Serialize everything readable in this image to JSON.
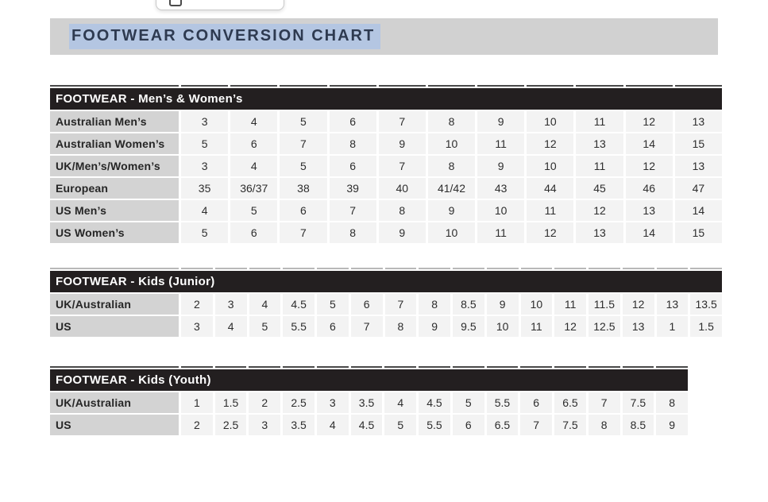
{
  "page": {
    "title": "FOOTWEAR CONVERSION CHART"
  },
  "popup": {
    "icon": "copy-icon"
  },
  "colors": {
    "banner_bg": "#d1d1d1",
    "selection_highlight": "#b4c6e2",
    "title_text": "#2e3a50",
    "table_header_bg": "#231f20",
    "row_label_bg": "#d3d3d3",
    "data_cell_bg": "#f3f3f3"
  },
  "tables": [
    {
      "header": "FOOTWEAR - Men’s & Women’s",
      "rows": [
        {
          "label": "Australian Men’s",
          "cells": [
            "3",
            "4",
            "5",
            "6",
            "7",
            "8",
            "9",
            "10",
            "11",
            "12",
            "13"
          ]
        },
        {
          "label": "Australian Women’s",
          "cells": [
            "5",
            "6",
            "7",
            "8",
            "9",
            "10",
            "11",
            "12",
            "13",
            "14",
            "15"
          ]
        },
        {
          "label": "UK/Men’s/Women’s",
          "cells": [
            "3",
            "4",
            "5",
            "6",
            "7",
            "8",
            "9",
            "10",
            "11",
            "12",
            "13"
          ]
        },
        {
          "label": "European",
          "cells": [
            "35",
            "36/37",
            "38",
            "39",
            "40",
            "41/42",
            "43",
            "44",
            "45",
            "46",
            "47"
          ]
        },
        {
          "label": "US Men’s",
          "cells": [
            "4",
            "5",
            "6",
            "7",
            "8",
            "9",
            "10",
            "11",
            "12",
            "13",
            "14"
          ]
        },
        {
          "label": "US Women’s",
          "cells": [
            "5",
            "6",
            "7",
            "8",
            "9",
            "10",
            "11",
            "12",
            "13",
            "14",
            "15"
          ]
        }
      ]
    },
    {
      "header": "FOOTWEAR - Kids (Junior)",
      "rows": [
        {
          "label": "UK/Australian",
          "cells": [
            "2",
            "3",
            "4",
            "4.5",
            "5",
            "6",
            "7",
            "8",
            "8.5",
            "9",
            "10",
            "11",
            "11.5",
            "12",
            "13",
            "13.5"
          ]
        },
        {
          "label": "US",
          "cells": [
            "3",
            "4",
            "5",
            "5.5",
            "6",
            "7",
            "8",
            "9",
            "9.5",
            "10",
            "11",
            "12",
            "12.5",
            "13",
            "1",
            "1.5"
          ]
        }
      ]
    },
    {
      "header": "FOOTWEAR - Kids (Youth)",
      "rows": [
        {
          "label": "UK/Australian",
          "cells": [
            "1",
            "1.5",
            "2",
            "2.5",
            "3",
            "3.5",
            "4",
            "4.5",
            "5",
            "5.5",
            "6",
            "6.5",
            "7",
            "7.5",
            "8"
          ]
        },
        {
          "label": "US",
          "cells": [
            "2",
            "2.5",
            "3",
            "3.5",
            "4",
            "4.5",
            "5",
            "5.5",
            "6",
            "6.5",
            "7",
            "7.5",
            "8",
            "8.5",
            "9"
          ]
        }
      ]
    }
  ]
}
